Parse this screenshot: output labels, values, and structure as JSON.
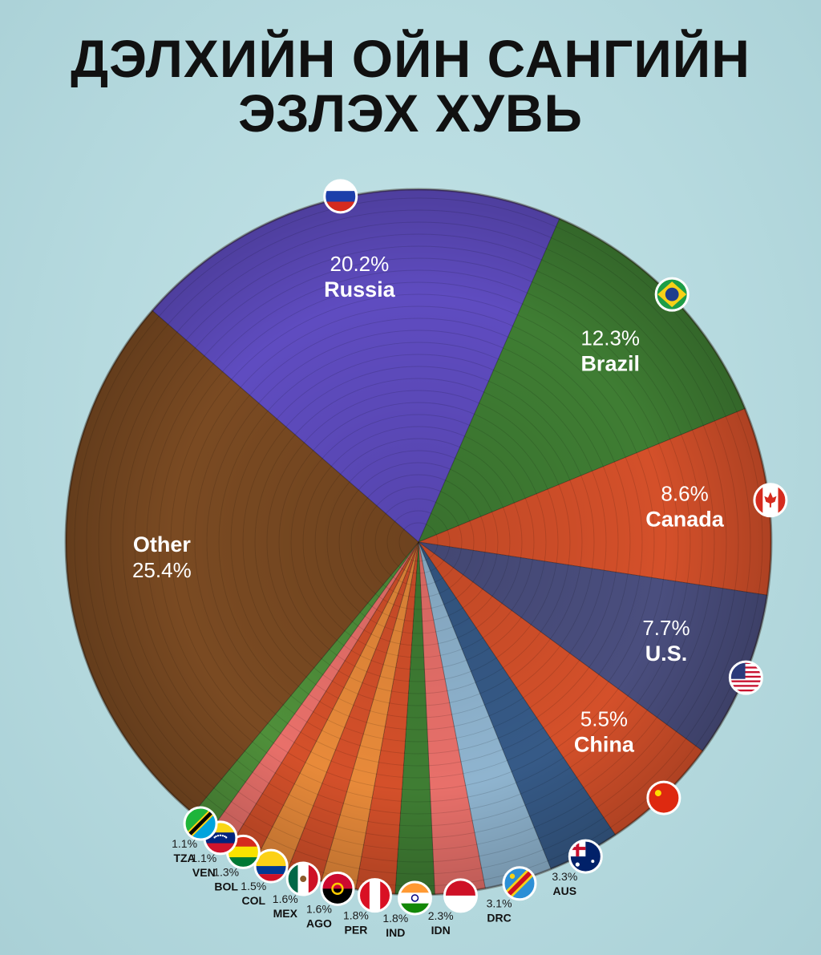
{
  "title": [
    "ДЭЛХИЙН ОЙН САНГИЙН",
    "ЭЗЛЭХ ХУВЬ"
  ],
  "chart_data": {
    "type": "pie",
    "title": "ДЭЛХИЙН ОЙН САНГИЙН ЭЗЛЭХ ХУВЬ",
    "slices": [
      {
        "name": "Russia",
        "pct_label": "20.2%",
        "value": 20.2,
        "color": "#5f4cc0",
        "flag": "russia-flag"
      },
      {
        "name": "Brazil",
        "pct_label": "12.3%",
        "value": 12.3,
        "color": "#3f7d33",
        "flag": "brazil-flag"
      },
      {
        "name": "Canada",
        "pct_label": "8.6%",
        "value": 8.6,
        "color": "#d4502a",
        "flag": "canada-flag"
      },
      {
        "name": "U.S.",
        "pct_label": "7.7%",
        "value": 7.7,
        "color": "#4a4e7e",
        "flag": "usa-flag"
      },
      {
        "name": "China",
        "pct_label": "5.5%",
        "value": 5.5,
        "color": "#d4502a",
        "flag": "china-flag"
      },
      {
        "name": "AUS",
        "pct_label": "3.3%",
        "value": 3.3,
        "color": "#365a87",
        "flag": "australia-flag"
      },
      {
        "name": "DRC",
        "pct_label": "3.1%",
        "value": 3.1,
        "color": "#8fb4cf",
        "flag": "drc-flag"
      },
      {
        "name": "IDN",
        "pct_label": "2.3%",
        "value": 2.3,
        "color": "#e8706a",
        "flag": "indonesia-flag"
      },
      {
        "name": "IND",
        "pct_label": "1.8%",
        "value": 1.8,
        "color": "#3f7d33",
        "flag": "india-flag"
      },
      {
        "name": "PER",
        "pct_label": "1.8%",
        "value": 1.8,
        "color": "#d4502a",
        "flag": "peru-flag"
      },
      {
        "name": "AGO",
        "pct_label": "1.6%",
        "value": 1.6,
        "color": "#e88a3a",
        "flag": "angola-flag"
      },
      {
        "name": "MEX",
        "pct_label": "1.6%",
        "value": 1.6,
        "color": "#d4502a",
        "flag": "mexico-flag"
      },
      {
        "name": "COL",
        "pct_label": "1.5%",
        "value": 1.5,
        "color": "#e88a3a",
        "flag": "colombia-flag"
      },
      {
        "name": "BOL",
        "pct_label": "1.3%",
        "value": 1.3,
        "color": "#d4502a",
        "flag": "bolivia-flag"
      },
      {
        "name": "VEN",
        "pct_label": "1.1%",
        "value": 1.1,
        "color": "#e8706a",
        "flag": "venezuela-flag"
      },
      {
        "name": "TZA",
        "pct_label": "1.1%",
        "value": 1.1,
        "color": "#4f8f3a",
        "flag": "tanzania-flag"
      },
      {
        "name": "Other",
        "pct_label": "25.4%",
        "value": 25.4,
        "color": "#7a4a22",
        "flag": ""
      }
    ]
  }
}
